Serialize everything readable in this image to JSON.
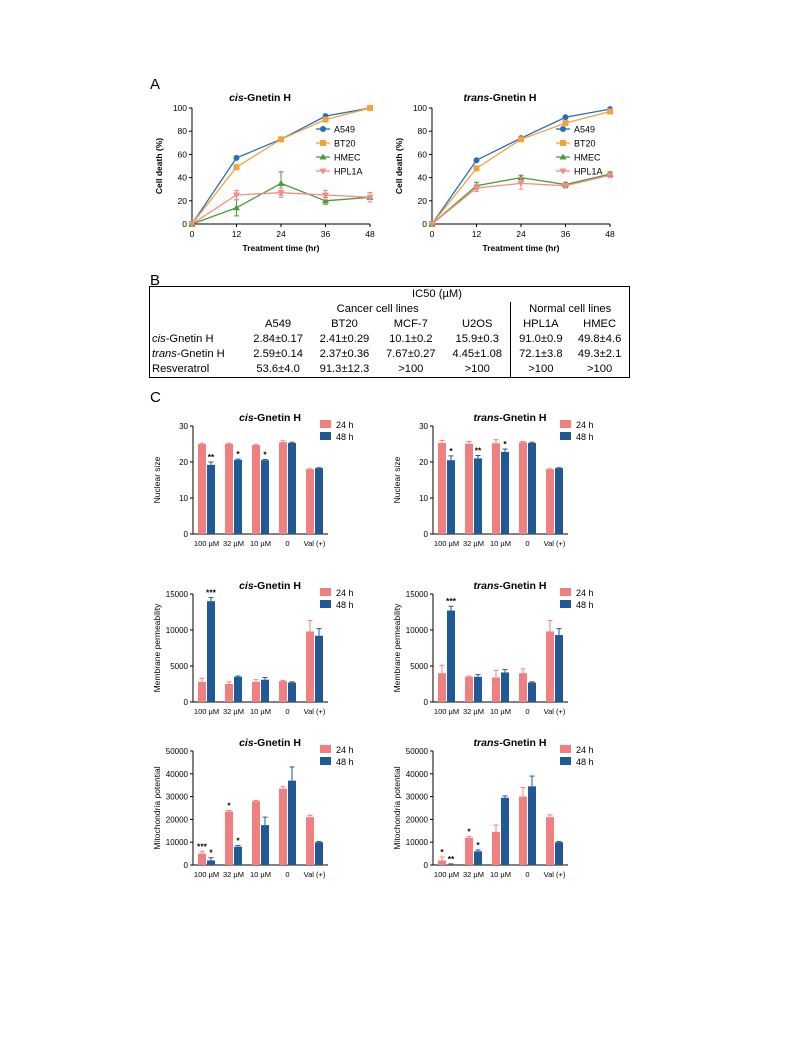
{
  "panel_labels": {
    "a": "A",
    "b": "B",
    "c": "C"
  },
  "panel_a": {
    "x_ticks": [
      "0",
      "12",
      "24",
      "36",
      "48"
    ],
    "y_ticks": [
      "0",
      "20",
      "40",
      "60",
      "80",
      "100"
    ],
    "xlabel": "Treatment time (hr)",
    "ylabel": "Cell death (%)",
    "legend": [
      "A549",
      "BT20",
      "HMEC",
      "HPL1A"
    ],
    "colors": {
      "A549": "#2a6fb5",
      "BT20": "#f4a23c",
      "HMEC": "#4c9a3a",
      "HPL1A": "#f58a8a"
    }
  },
  "table_b": {
    "header": "IC50 (µM)",
    "group_cancer": "Cancer cell lines",
    "group_normal": "Normal cell lines",
    "columns": [
      "A549",
      "BT20",
      "MCF-7",
      "U2OS",
      "HPL1A",
      "HMEC"
    ],
    "rows": [
      {
        "label_italic": "cis",
        "label_rest": "-Gnetin H",
        "values": [
          "2.84±0.17",
          "2.41±0.29",
          "10.1±0.2",
          "15.9±0.3",
          "91.0±0.9",
          "49.8±4.6"
        ]
      },
      {
        "label_italic": "trans",
        "label_rest": "-Gnetin H",
        "values": [
          "2.59±0.14",
          "2.37±0.36",
          "7.67±0.27",
          "4.45±1.08",
          "72.1±3.8",
          "49.3±2.1"
        ]
      },
      {
        "label_italic": "",
        "label_rest": "Resveratrol",
        "values": [
          "53.6±4.0",
          "91.3±12.3",
          ">100",
          ">100",
          ">100",
          ">100"
        ]
      }
    ]
  },
  "panel_c": {
    "categories": [
      "100 µM",
      "32 µM",
      "10 µM",
      "0",
      "Val (+)"
    ],
    "legend": [
      "24 h",
      "48 h"
    ],
    "colors": {
      "24 h": "#f08080",
      "48 h": "#1f5a96"
    }
  },
  "chart_data": [
    {
      "type": "line",
      "title_italic": "cis",
      "title_rest": "-Gnetin H",
      "xlabel": "Treatment time (hr)",
      "ylabel": "Cell death (%)",
      "x": [
        0,
        12,
        24,
        36,
        48
      ],
      "xlim": [
        0,
        48
      ],
      "ylim": [
        0,
        100
      ],
      "series": [
        {
          "name": "A549",
          "values": [
            0,
            57,
            73,
            93,
            100
          ],
          "errors": [
            0,
            1,
            1,
            1,
            0
          ],
          "marker": "circle",
          "color": "#2a6fb5"
        },
        {
          "name": "BT20",
          "values": [
            0,
            49,
            73,
            90,
            100
          ],
          "errors": [
            0,
            1,
            1,
            1,
            0
          ],
          "marker": "square",
          "color": "#f4a23c"
        },
        {
          "name": "HMEC",
          "values": [
            0,
            14,
            35,
            20,
            23
          ],
          "errors": [
            0,
            7,
            10,
            3,
            4
          ],
          "marker": "triangle",
          "color": "#4c9a3a"
        },
        {
          "name": "HPL1A",
          "values": [
            0,
            25,
            27,
            25,
            23
          ],
          "errors": [
            0,
            4,
            4,
            4,
            4
          ],
          "marker": "triangle-down",
          "color": "#f58a8a"
        }
      ]
    },
    {
      "type": "line",
      "title_italic": "trans",
      "title_rest": "-Gnetin H",
      "xlabel": "Treatment time (hr)",
      "ylabel": "Cell death (%)",
      "x": [
        0,
        12,
        24,
        36,
        48
      ],
      "xlim": [
        0,
        48
      ],
      "ylim": [
        0,
        100
      ],
      "series": [
        {
          "name": "A549",
          "values": [
            0,
            55,
            74,
            92,
            99
          ],
          "errors": [
            0,
            1,
            1,
            1,
            1
          ],
          "marker": "circle",
          "color": "#2a6fb5"
        },
        {
          "name": "BT20",
          "values": [
            0,
            48,
            73,
            87,
            97
          ],
          "errors": [
            0,
            1,
            1,
            1,
            1
          ],
          "marker": "square",
          "color": "#f4a23c"
        },
        {
          "name": "HMEC",
          "values": [
            0,
            33,
            40,
            34,
            43
          ],
          "errors": [
            0,
            3,
            2,
            2,
            2
          ],
          "marker": "triangle",
          "color": "#4c9a3a"
        },
        {
          "name": "HPL1A",
          "values": [
            0,
            31,
            35,
            33,
            42
          ],
          "errors": [
            0,
            3,
            5,
            2,
            2
          ],
          "marker": "triangle-down",
          "color": "#f58a8a"
        }
      ]
    },
    {
      "type": "bar",
      "title_italic": "cis",
      "title_rest": "-Gnetin H",
      "ylabel": "Nuclear size",
      "categories": [
        "100 µM",
        "32 µM",
        "10 µM",
        "0",
        "Val (+)"
      ],
      "ylim": [
        0,
        30
      ],
      "yticks": [
        0,
        10,
        20,
        30
      ],
      "series": [
        {
          "name": "24 h",
          "values": [
            25,
            25,
            24.7,
            25.5,
            18
          ],
          "errors": [
            0.2,
            0.2,
            0.2,
            0.4,
            0.1
          ],
          "stars": [
            "",
            "",
            "",
            "",
            ""
          ]
        },
        {
          "name": "48 h",
          "values": [
            19.2,
            20.6,
            20.5,
            25.3,
            18.3
          ],
          "errors": [
            0.8,
            0.2,
            0.2,
            0.2,
            0.1
          ],
          "stars": [
            "**",
            "*",
            "*",
            "",
            ""
          ]
        }
      ]
    },
    {
      "type": "bar",
      "title_italic": "trans",
      "title_rest": "-Gnetin H",
      "ylabel": "Nuclear size",
      "categories": [
        "100 µM",
        "32 µM",
        "10 µM",
        "0",
        "Val (+)"
      ],
      "ylim": [
        0,
        30
      ],
      "yticks": [
        0,
        10,
        20,
        30
      ],
      "series": [
        {
          "name": "24 h",
          "values": [
            25.3,
            25.1,
            25.2,
            25.5,
            18
          ],
          "errors": [
            0.7,
            0.6,
            1.0,
            0.2,
            0.1
          ],
          "stars": [
            "",
            "",
            "",
            "",
            ""
          ]
        },
        {
          "name": "48 h",
          "values": [
            20.5,
            21,
            22.8,
            25.3,
            18.3
          ],
          "errors": [
            1.2,
            0.8,
            0.8,
            0.2,
            0.1
          ],
          "stars": [
            "*",
            "**",
            "*",
            "",
            ""
          ]
        }
      ]
    },
    {
      "type": "bar",
      "title_italic": "cis",
      "title_rest": "-Gnetin H",
      "ylabel": "Membrane permeability",
      "categories": [
        "100 µM",
        "32 µM",
        "10 µM",
        "0",
        "Val (+)"
      ],
      "ylim": [
        0,
        15000
      ],
      "yticks": [
        0,
        5000,
        10000,
        15000
      ],
      "series": [
        {
          "name": "24 h",
          "values": [
            2800,
            2500,
            2800,
            2900,
            9800
          ],
          "errors": [
            500,
            300,
            300,
            100,
            1500
          ],
          "stars": [
            "",
            "",
            "",
            "",
            ""
          ]
        },
        {
          "name": "48 h",
          "values": [
            14000,
            3500,
            3100,
            2700,
            9200
          ],
          "errors": [
            500,
            100,
            300,
            100,
            1000
          ],
          "stars": [
            "***",
            "",
            "",
            "",
            ""
          ]
        }
      ]
    },
    {
      "type": "bar",
      "title_italic": "trans",
      "title_rest": "-Gnetin H",
      "ylabel": "Membrane permeability",
      "categories": [
        "100 µM",
        "32 µM",
        "10 µM",
        "0",
        "Val (+)"
      ],
      "ylim": [
        0,
        15000
      ],
      "yticks": [
        0,
        5000,
        10000,
        15000
      ],
      "series": [
        {
          "name": "24 h",
          "values": [
            4000,
            3500,
            3400,
            4000,
            9800
          ],
          "errors": [
            1100,
            100,
            1000,
            600,
            1500
          ],
          "stars": [
            "",
            "",
            "",
            "",
            ""
          ]
        },
        {
          "name": "48 h",
          "values": [
            12700,
            3500,
            4100,
            2700,
            9300
          ],
          "errors": [
            600,
            300,
            400,
            100,
            900
          ],
          "stars": [
            "***",
            "",
            "",
            "",
            ""
          ]
        }
      ]
    },
    {
      "type": "bar",
      "title_italic": "cis",
      "title_rest": "-Gnetin H",
      "ylabel": "Mitochondria potential",
      "categories": [
        "100 µM",
        "32 µM",
        "10 µM",
        "0",
        "Val (+)"
      ],
      "ylim": [
        0,
        50000
      ],
      "yticks": [
        0,
        10000,
        20000,
        30000,
        40000,
        50000
      ],
      "series": [
        {
          "name": "24 h",
          "values": [
            5000,
            23500,
            28000,
            33500,
            21000
          ],
          "errors": [
            1000,
            400,
            300,
            1000,
            800
          ],
          "stars": [
            "***",
            "*",
            "",
            "",
            ""
          ]
        },
        {
          "name": "48 h",
          "values": [
            2000,
            8000,
            17500,
            37000,
            10000
          ],
          "errors": [
            1200,
            500,
            3500,
            6000,
            300
          ],
          "stars": [
            "*",
            "*",
            "",
            "",
            ""
          ]
        }
      ]
    },
    {
      "type": "bar",
      "title_italic": "trans",
      "title_rest": "-Gnetin H",
      "ylabel": "Mitochondria potential",
      "categories": [
        "100 µM",
        "32 µM",
        "10 µM",
        "0",
        "Val (+)"
      ],
      "ylim": [
        0,
        50000
      ],
      "yticks": [
        0,
        10000,
        20000,
        30000,
        40000,
        50000
      ],
      "series": [
        {
          "name": "24 h",
          "values": [
            2000,
            12000,
            14500,
            30000,
            21000
          ],
          "errors": [
            1500,
            600,
            3000,
            4000,
            1000
          ],
          "stars": [
            "*",
            "*",
            "",
            "",
            ""
          ]
        },
        {
          "name": "48 h",
          "values": [
            300,
            6000,
            29500,
            34500,
            10000
          ],
          "errors": [
            200,
            600,
            800,
            4500,
            300
          ],
          "stars": [
            "**",
            "*",
            "",
            "",
            ""
          ]
        }
      ]
    }
  ]
}
